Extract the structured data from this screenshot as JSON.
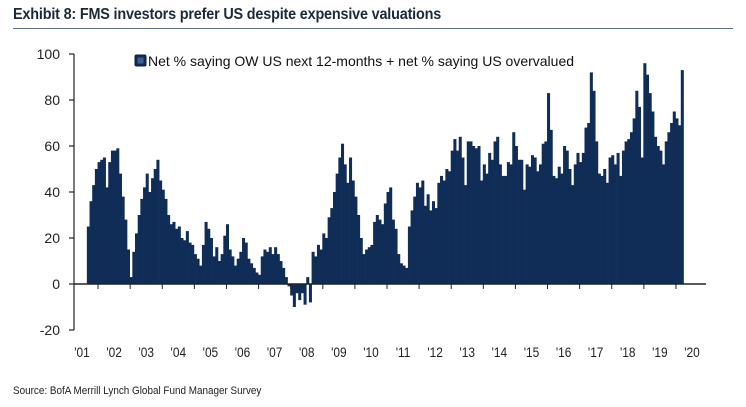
{
  "exhibit": {
    "title": "Exhibit 8: FMS investors prefer US despite expensive valuations",
    "source": "Source: BofA Merrill Lynch Global Fund Manager Survey"
  },
  "colors": {
    "bar": "#0f2d57",
    "axis": "#222222",
    "rule": "#5b7288"
  },
  "chart_data": {
    "type": "bar",
    "title": "Exhibit 8: FMS investors prefer US despite expensive valuations",
    "xlabel": "",
    "ylabel": "",
    "ylim": [
      -20,
      100
    ],
    "yticks": [
      -20,
      0,
      20,
      40,
      60,
      80,
      100
    ],
    "ytick_labels": [
      "-20",
      "0",
      "20",
      "40",
      "60",
      "80",
      "100"
    ],
    "xlim_years": [
      2001,
      2020
    ],
    "xticks": [
      2001,
      2002,
      2003,
      2004,
      2005,
      2006,
      2007,
      2008,
      2009,
      2010,
      2011,
      2012,
      2013,
      2014,
      2015,
      2016,
      2017,
      2018,
      2019,
      2020
    ],
    "xtick_labels": [
      "'01",
      "'02",
      "'03",
      "'04",
      "'05",
      "'06",
      "'07",
      "'08",
      "'09",
      "'10",
      "'11",
      "'12",
      "'13",
      "'14",
      "'15",
      "'16",
      "'17",
      "'18",
      "'19",
      "'20"
    ],
    "grid": false,
    "legend": {
      "position": "top",
      "entries": [
        "Net % saying OW US next 12-months + net % saying US overvalued"
      ]
    },
    "series": [
      {
        "name": "Net % saying OW US next 12-months + net % saying US overvalued",
        "frequency": "monthly",
        "start": "2001-03",
        "values": [
          25,
          36,
          43,
          50,
          53,
          54,
          55,
          42,
          53,
          58,
          58,
          59,
          48,
          38,
          28,
          15,
          3,
          14,
          22,
          30,
          37,
          42,
          48,
          40,
          46,
          50,
          54,
          45,
          41,
          37,
          30,
          26,
          27,
          24,
          25,
          20,
          19,
          23,
          18,
          17,
          13,
          11,
          8,
          17,
          27,
          24,
          20,
          12,
          16,
          10,
          13,
          21,
          26,
          15,
          12,
          8,
          11,
          14,
          20,
          18,
          11,
          9,
          7,
          5,
          4,
          12,
          15,
          14,
          16,
          13,
          16,
          13,
          10,
          7,
          3,
          -1,
          -5,
          -10,
          -4,
          -7,
          -4,
          -9,
          3,
          -8,
          14,
          12,
          17,
          15,
          22,
          20,
          29,
          33,
          40,
          48,
          55,
          61,
          52,
          44,
          55,
          45,
          38,
          30,
          20,
          13,
          15,
          16,
          17,
          27,
          30,
          28,
          26,
          35,
          40,
          42,
          28,
          24,
          13,
          9,
          8,
          7,
          25,
          32,
          38,
          44,
          42,
          45,
          34,
          39,
          32,
          36,
          33,
          44,
          47,
          45,
          50,
          49,
          58,
          63,
          58,
          64,
          55,
          43,
          62,
          62,
          60,
          59,
          60,
          45,
          52,
          48,
          57,
          54,
          62,
          64,
          52,
          47,
          47,
          53,
          52,
          66,
          60,
          54,
          54,
          41,
          52,
          51,
          56,
          55,
          49,
          52,
          61,
          62,
          83,
          67,
          47,
          46,
          51,
          48,
          60,
          58,
          50,
          43,
          52,
          57,
          53,
          57,
          68,
          70,
          92,
          84,
          62,
          48,
          47,
          50,
          44,
          55,
          56,
          52,
          57,
          47,
          58,
          62,
          63,
          66,
          72,
          84,
          77,
          55,
          96,
          91,
          83,
          75,
          64,
          60,
          58,
          52,
          62,
          66,
          70,
          75,
          72,
          69,
          93
        ]
      }
    ]
  }
}
